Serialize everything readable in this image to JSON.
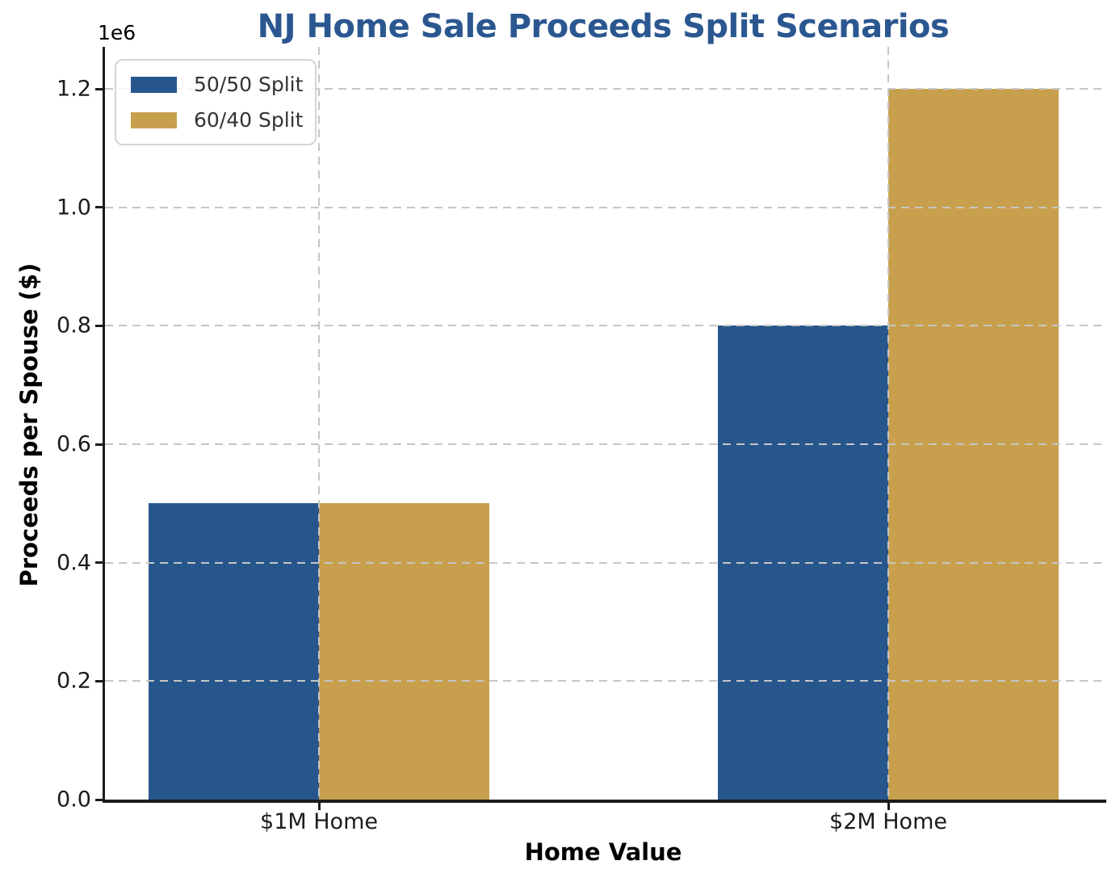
{
  "chart_data": {
    "type": "bar",
    "title": "NJ Home Sale Proceeds Split Scenarios",
    "xlabel": "Home Value",
    "ylabel": "Proceeds per Spouse ($)",
    "y_offset_label": "1e6",
    "categories": [
      "$1M Home",
      "$2M Home"
    ],
    "series": [
      {
        "name": "50/50 Split",
        "color": "#27568C",
        "values": [
          500000,
          800000
        ]
      },
      {
        "name": "60/40 Split",
        "color": "#C8A04D",
        "values": [
          500000,
          1200000
        ]
      }
    ],
    "ytick_labels": [
      "0.0",
      "0.2",
      "0.4",
      "0.6",
      "0.8",
      "1.0",
      "1.2"
    ],
    "ytick_values": [
      0,
      200000,
      400000,
      600000,
      800000,
      1000000,
      1200000
    ],
    "ylim": [
      0,
      1270000
    ],
    "grid": true,
    "grid_style": "dashed",
    "legend_position": "upper left",
    "colors": {
      "title": "#2B5790",
      "axis": "#1C1C1C",
      "tick_text": "#1C1C1C",
      "grid": "#C6C6C6",
      "legend_text": "#333333",
      "legend_border": "#D4D4D4",
      "background": "#FFFFFF"
    }
  }
}
